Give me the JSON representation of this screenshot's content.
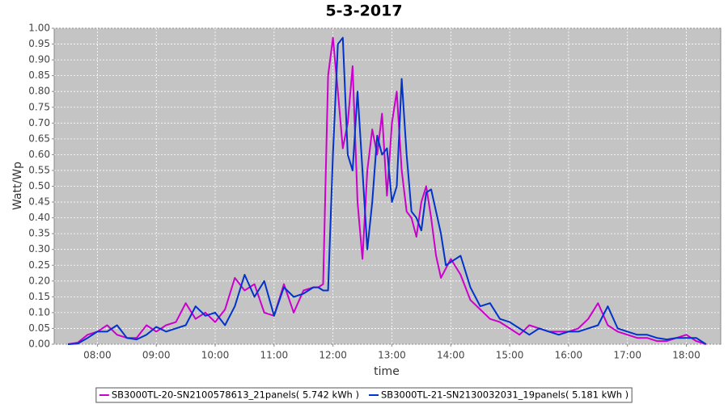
{
  "chart_data": {
    "type": "line",
    "title": "5-3-2017",
    "x_label": "time",
    "y_label": "Watt/Wp",
    "x": [
      "07:30",
      "07:40",
      "07:50",
      "08:00",
      "08:10",
      "08:20",
      "08:30",
      "08:40",
      "08:50",
      "09:00",
      "09:10",
      "09:20",
      "09:30",
      "09:40",
      "09:50",
      "10:00",
      "10:10",
      "10:20",
      "10:30",
      "10:40",
      "10:50",
      "11:00",
      "11:10",
      "11:20",
      "11:30",
      "11:40",
      "11:45",
      "11:50",
      "11:55",
      "12:00",
      "12:05",
      "12:10",
      "12:15",
      "12:20",
      "12:25",
      "12:30",
      "12:35",
      "12:40",
      "12:45",
      "12:50",
      "12:55",
      "13:00",
      "13:05",
      "13:10",
      "13:15",
      "13:20",
      "13:25",
      "13:30",
      "13:35",
      "13:40",
      "13:45",
      "13:50",
      "13:55",
      "14:00",
      "14:10",
      "14:20",
      "14:30",
      "14:40",
      "14:50",
      "15:00",
      "15:10",
      "15:20",
      "15:30",
      "15:40",
      "15:50",
      "16:00",
      "16:10",
      "16:20",
      "16:30",
      "16:40",
      "16:50",
      "17:00",
      "17:10",
      "17:20",
      "17:30",
      "17:40",
      "17:50",
      "18:00",
      "18:10",
      "18:20"
    ],
    "series": [
      {
        "name": "SB3000TL-20-SN2100578613_21panels( 5.742 kWh )",
        "color": "#cc00cc",
        "values": [
          0,
          0.005,
          0.03,
          0.04,
          0.06,
          0.03,
          0.02,
          0.02,
          0.06,
          0.04,
          0.06,
          0.07,
          0.13,
          0.08,
          0.1,
          0.07,
          0.11,
          0.21,
          0.17,
          0.19,
          0.1,
          0.09,
          0.19,
          0.1,
          0.17,
          0.18,
          0.18,
          0.19,
          0.85,
          0.97,
          0.8,
          0.62,
          0.7,
          0.88,
          0.45,
          0.27,
          0.55,
          0.68,
          0.6,
          0.73,
          0.47,
          0.7,
          0.8,
          0.55,
          0.42,
          0.4,
          0.34,
          0.45,
          0.5,
          0.4,
          0.28,
          0.21,
          0.24,
          0.27,
          0.22,
          0.14,
          0.11,
          0.08,
          0.07,
          0.05,
          0.03,
          0.06,
          0.05,
          0.04,
          0.04,
          0.04,
          0.05,
          0.08,
          0.13,
          0.06,
          0.04,
          0.03,
          0.02,
          0.02,
          0.01,
          0.01,
          0.02,
          0.03,
          0.01,
          0
        ]
      },
      {
        "name": "SB3000TL-21-SN2130032031_19panels( 5.181 kWh )",
        "color": "#0033cc",
        "values": [
          0,
          0.002,
          0.02,
          0.04,
          0.04,
          0.06,
          0.02,
          0.015,
          0.03,
          0.055,
          0.04,
          0.05,
          0.06,
          0.12,
          0.09,
          0.1,
          0.06,
          0.12,
          0.22,
          0.15,
          0.2,
          0.09,
          0.18,
          0.15,
          0.16,
          0.18,
          0.18,
          0.17,
          0.17,
          0.6,
          0.95,
          0.97,
          0.6,
          0.55,
          0.8,
          0.55,
          0.3,
          0.45,
          0.66,
          0.6,
          0.62,
          0.45,
          0.5,
          0.84,
          0.6,
          0.42,
          0.4,
          0.36,
          0.48,
          0.49,
          0.42,
          0.35,
          0.25,
          0.26,
          0.28,
          0.18,
          0.12,
          0.13,
          0.08,
          0.07,
          0.05,
          0.03,
          0.05,
          0.04,
          0.03,
          0.04,
          0.04,
          0.05,
          0.06,
          0.12,
          0.05,
          0.04,
          0.03,
          0.03,
          0.02,
          0.015,
          0.02,
          0.02,
          0.02,
          0
        ]
      }
    ],
    "xlim": [
      "07:16",
      "18:35"
    ],
    "xticks": [
      "08:00",
      "09:00",
      "10:00",
      "11:00",
      "12:00",
      "13:00",
      "14:00",
      "15:00",
      "16:00",
      "17:00",
      "18:00"
    ],
    "ylim": [
      0,
      1
    ],
    "yticks": [
      {
        "value": 0,
        "label": "0.00"
      },
      {
        "value": 0.05,
        "label": "0.05"
      },
      {
        "value": 0.1,
        "label": "0.10"
      },
      {
        "value": 0.15,
        "label": "0.15"
      },
      {
        "value": 0.2,
        "label": "0.20"
      },
      {
        "value": 0.25,
        "label": "0.25"
      },
      {
        "value": 0.3,
        "label": "0.30"
      },
      {
        "value": 0.35,
        "label": "0.35"
      },
      {
        "value": 0.4,
        "label": "0.40"
      },
      {
        "value": 0.45,
        "label": "0.45"
      },
      {
        "value": 0.5,
        "label": "0.50"
      },
      {
        "value": 0.55,
        "label": "0.55"
      },
      {
        "value": 0.6,
        "label": "0.60"
      },
      {
        "value": 0.65,
        "label": "0.65"
      },
      {
        "value": 0.7,
        "label": "0.70"
      },
      {
        "value": 0.75,
        "label": "0.75"
      },
      {
        "value": 0.8,
        "label": "0.80"
      },
      {
        "value": 0.85,
        "label": "0.85"
      },
      {
        "value": 0.9,
        "label": "0.90"
      },
      {
        "value": 0.95,
        "label": "0.95"
      },
      {
        "value": 1,
        "label": "1.00"
      }
    ],
    "grid": true,
    "legend": "bottom"
  }
}
